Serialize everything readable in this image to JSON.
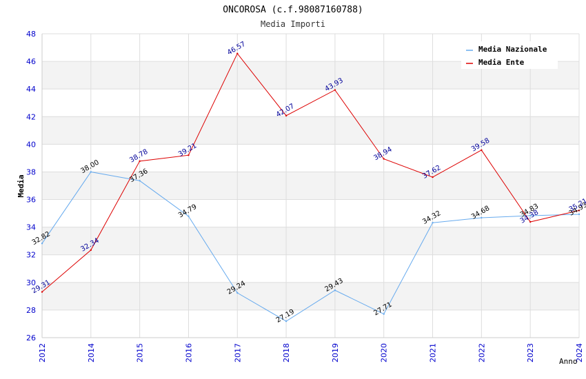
{
  "header": {
    "title": "ONCOROSA (c.f.98087160788)",
    "subtitle": "Media Importi"
  },
  "chart_data": {
    "type": "line",
    "title": "ONCOROSA (c.f.98087160788)",
    "subtitle": "Media Importi",
    "xlabel": "Anno",
    "ylabel": "Media",
    "ylim": [
      26,
      48
    ],
    "yticks": [
      "26",
      "28",
      "30",
      "32",
      "34",
      "36",
      "38",
      "40",
      "42",
      "44",
      "46",
      "48"
    ],
    "categories": [
      "2012",
      "2014",
      "2015",
      "2016",
      "2017",
      "2018",
      "2019",
      "2020",
      "2021",
      "2022",
      "2023",
      "2024"
    ],
    "grid": true,
    "legend_position": "top-right",
    "series": [
      {
        "name": "Media Nazionale",
        "color": "#66aaee",
        "label_color": "#000000",
        "values": [
          32.82,
          38.0,
          37.36,
          34.79,
          29.24,
          27.19,
          29.43,
          27.71,
          34.32,
          34.68,
          34.83,
          34.93
        ],
        "labels": [
          "32.82",
          "38.00",
          "37.36",
          "34.79",
          "29.24",
          "27.19",
          "29.43",
          "27.71",
          "34.32",
          "34.68",
          "34.83",
          "34.93"
        ]
      },
      {
        "name": "Media Ente",
        "color": "#dd0000",
        "label_color": "#000099",
        "values": [
          29.31,
          32.34,
          38.78,
          39.21,
          46.57,
          42.07,
          43.93,
          38.94,
          37.62,
          39.58,
          34.38,
          35.21
        ],
        "labels": [
          "29.31",
          "32.34",
          "38.78",
          "39.21",
          "46.57",
          "42.07",
          "43.93",
          "38.94",
          "37.62",
          "39.58",
          "34.38",
          "35.21"
        ]
      }
    ]
  }
}
